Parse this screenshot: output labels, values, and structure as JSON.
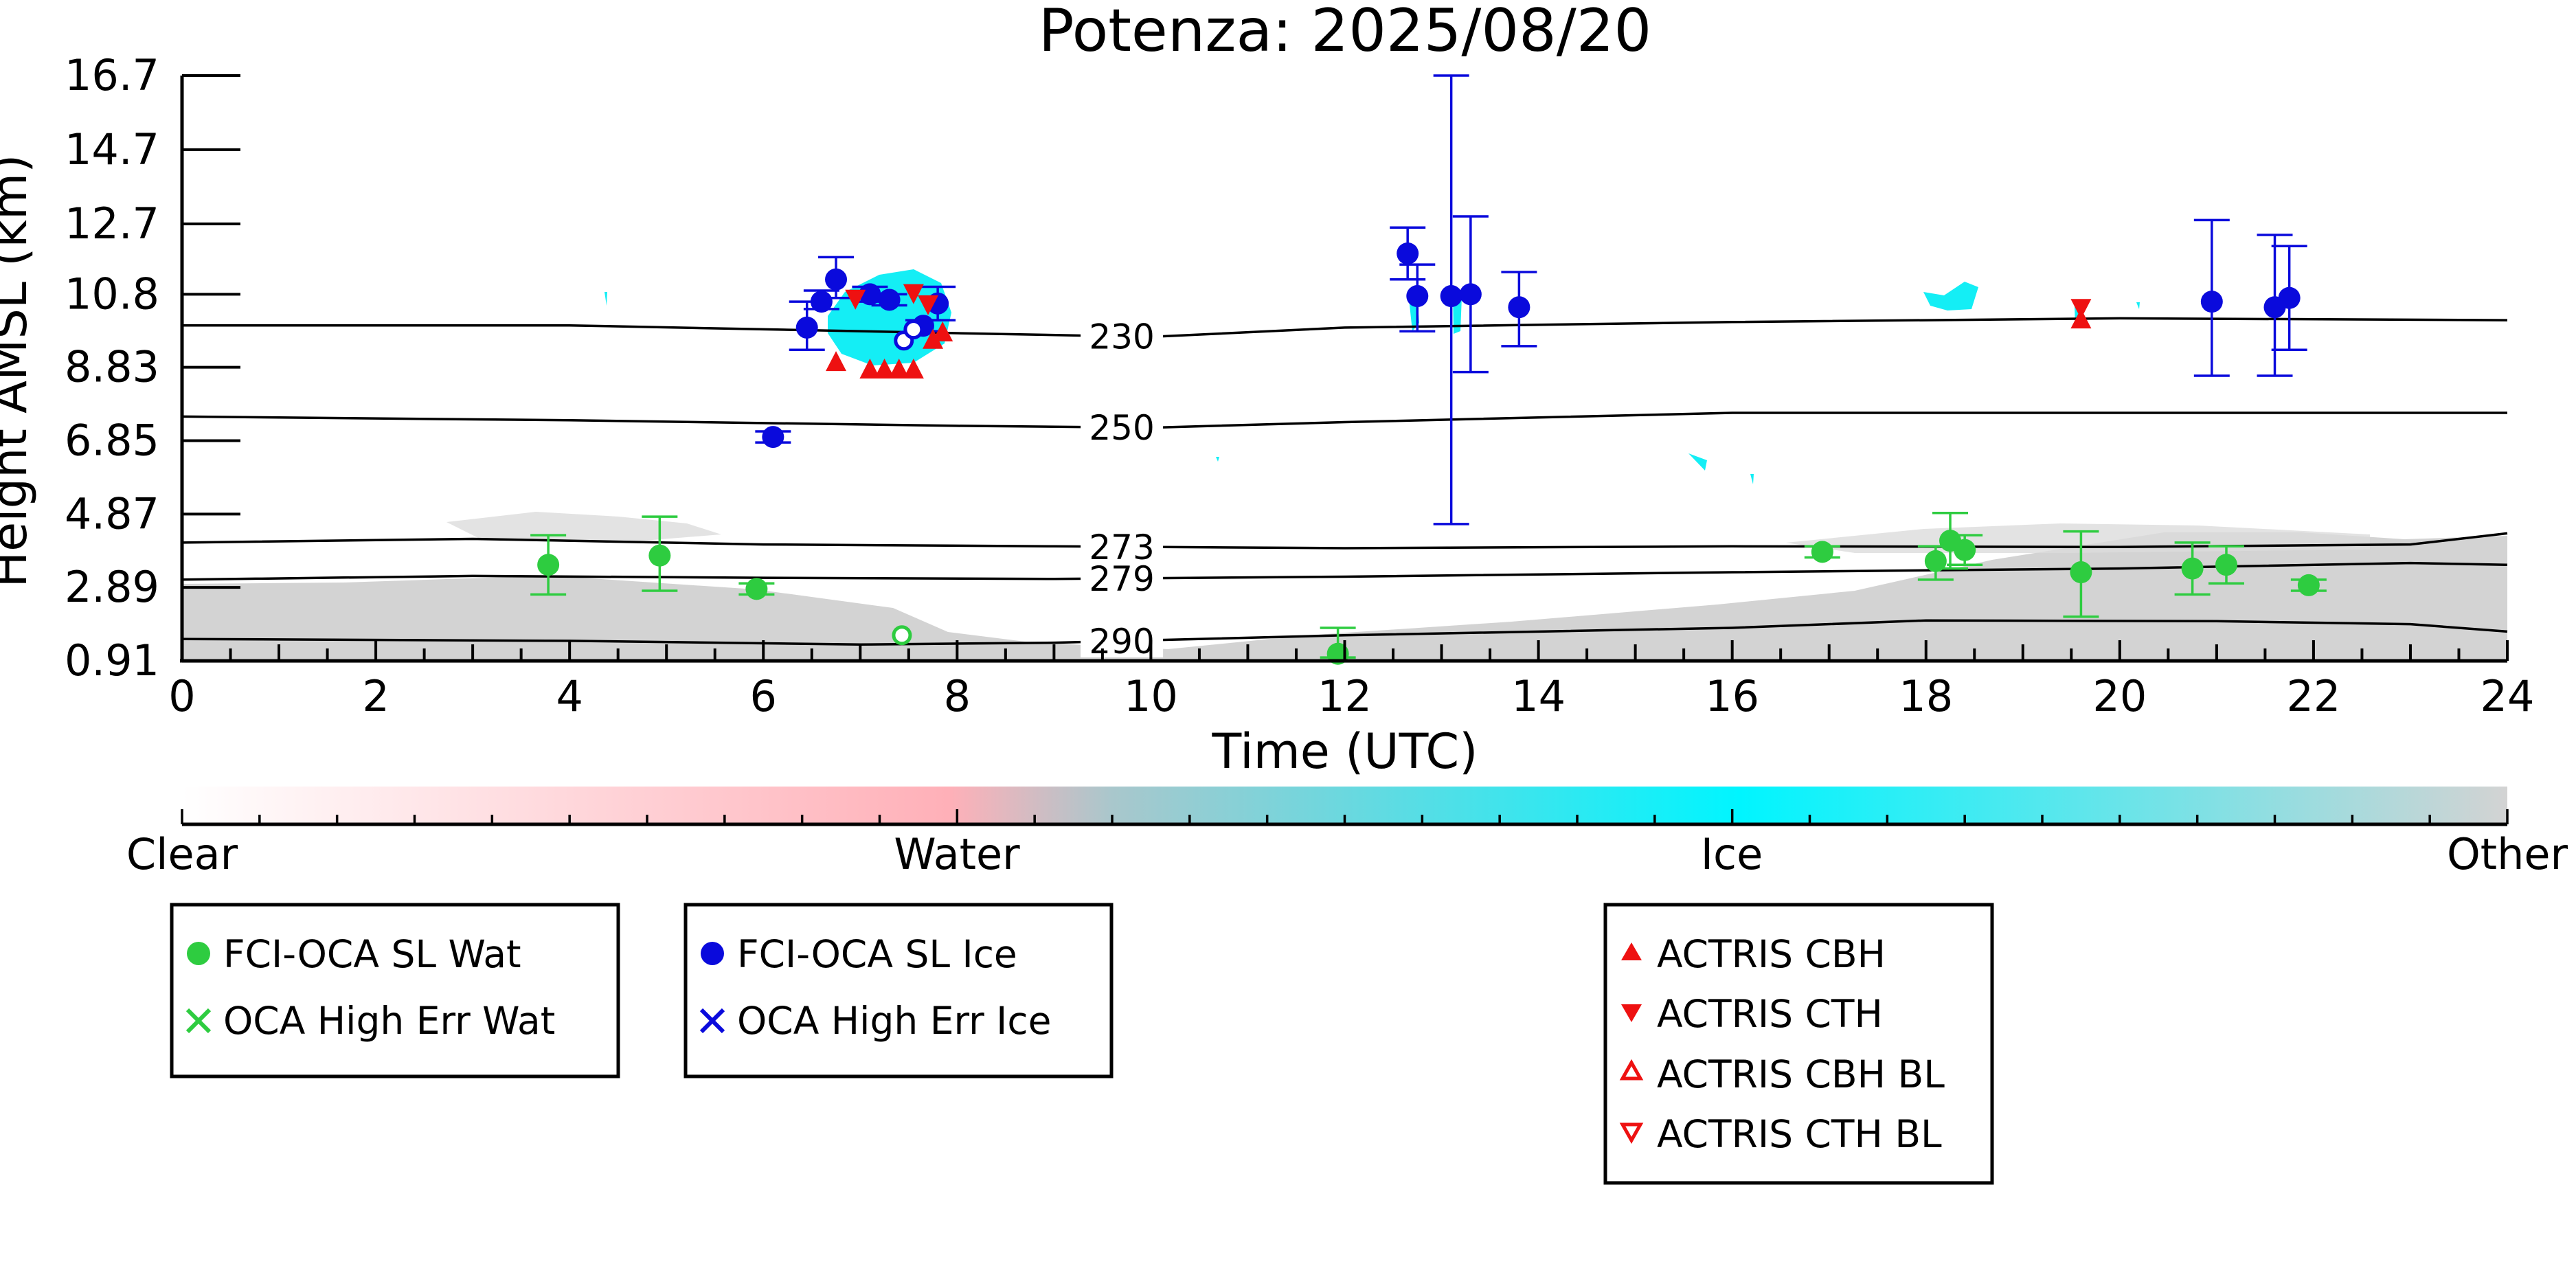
{
  "chart_data": {
    "type": "scatter",
    "title": "Potenza: 2025/08/20",
    "xlabel": "Time (UTC)",
    "ylabel": "Height AMSL (km)",
    "xlim": [
      0,
      24
    ],
    "ylim": [
      0.91,
      16.7
    ],
    "x_ticks": [
      "0",
      "2",
      "4",
      "6",
      "8",
      "10",
      "12",
      "14",
      "16",
      "18",
      "20",
      "22",
      "24"
    ],
    "y_ticks": [
      "0.91",
      "2.89",
      "4.87",
      "6.85",
      "8.83",
      "10.8",
      "12.7",
      "14.7",
      "16.7"
    ],
    "y_tick_values": [
      0.91,
      2.89,
      4.87,
      6.85,
      8.83,
      10.8,
      12.7,
      14.7,
      16.7
    ],
    "isotherms": [
      {
        "label": "230",
        "label_x": 9.7,
        "points": [
          [
            0,
            9.96
          ],
          [
            4,
            9.96
          ],
          [
            8,
            9.75
          ],
          [
            10,
            9.65
          ],
          [
            12,
            9.9
          ],
          [
            16,
            10.05
          ],
          [
            20,
            10.15
          ],
          [
            24,
            10.1
          ]
        ]
      },
      {
        "label": "250",
        "label_x": 9.7,
        "points": [
          [
            0,
            7.5
          ],
          [
            4,
            7.4
          ],
          [
            8,
            7.25
          ],
          [
            10,
            7.2
          ],
          [
            12,
            7.35
          ],
          [
            16,
            7.6
          ],
          [
            20,
            7.6
          ],
          [
            24,
            7.6
          ]
        ]
      },
      {
        "label": "273",
        "label_x": 9.7,
        "points": [
          [
            0,
            4.1
          ],
          [
            3,
            4.2
          ],
          [
            6,
            4.05
          ],
          [
            9,
            4.0
          ],
          [
            12,
            3.95
          ],
          [
            16,
            4.0
          ],
          [
            20,
            3.98
          ],
          [
            23,
            4.05
          ],
          [
            24,
            4.35
          ]
        ]
      },
      {
        "label": "279",
        "label_x": 9.7,
        "points": [
          [
            0,
            3.1
          ],
          [
            3,
            3.2
          ],
          [
            6,
            3.15
          ],
          [
            9,
            3.12
          ],
          [
            12,
            3.18
          ],
          [
            16,
            3.3
          ],
          [
            20,
            3.4
          ],
          [
            23,
            3.55
          ],
          [
            24,
            3.5
          ]
        ]
      },
      {
        "label": "290",
        "label_x": 9.7,
        "points": [
          [
            0,
            1.5
          ],
          [
            4,
            1.45
          ],
          [
            7,
            1.35
          ],
          [
            9,
            1.4
          ],
          [
            12,
            1.6
          ],
          [
            16,
            1.8
          ],
          [
            18,
            2.0
          ],
          [
            21,
            1.98
          ],
          [
            23,
            1.9
          ],
          [
            24,
            1.7
          ]
        ]
      }
    ],
    "series": [
      {
        "name": "FCI-OCA SL Wat",
        "color": "#2ecc40",
        "marker": "circle",
        "points": [
          {
            "x": 3.78,
            "y": 3.5,
            "ylo": 2.7,
            "yhi": 4.3
          },
          {
            "x": 4.93,
            "y": 3.75,
            "ylo": 2.8,
            "yhi": 4.8
          },
          {
            "x": 5.93,
            "y": 2.85,
            "ylo": 2.7,
            "yhi": 3.0
          },
          {
            "x": 11.93,
            "y": 1.1,
            "ylo": 1.0,
            "yhi": 1.8
          },
          {
            "x": 16.93,
            "y": 3.85,
            "ylo": 3.7,
            "yhi": 4.0
          },
          {
            "x": 18.1,
            "y": 3.6,
            "ylo": 3.1,
            "yhi": 4.0
          },
          {
            "x": 18.25,
            "y": 4.15,
            "ylo": 3.4,
            "yhi": 4.9
          },
          {
            "x": 18.4,
            "y": 3.9,
            "ylo": 3.5,
            "yhi": 4.3
          },
          {
            "x": 19.6,
            "y": 3.3,
            "ylo": 2.1,
            "yhi": 4.4
          },
          {
            "x": 20.75,
            "y": 3.4,
            "ylo": 2.7,
            "yhi": 4.1
          },
          {
            "x": 21.1,
            "y": 3.5,
            "ylo": 3.0,
            "yhi": 4.0
          },
          {
            "x": 21.95,
            "y": 2.95,
            "ylo": 2.8,
            "yhi": 3.1
          }
        ]
      },
      {
        "name": "OCA High Err Wat",
        "color": "#2ecc40",
        "marker": "x",
        "points": []
      },
      {
        "name": "FCI-OCA SL Ice",
        "color": "#0a0adc",
        "marker": "circle",
        "points": [
          {
            "x": 6.1,
            "y": 6.95,
            "ylo": 6.8,
            "yhi": 7.1
          },
          {
            "x": 6.45,
            "y": 9.9,
            "ylo": 9.3,
            "yhi": 10.6
          },
          {
            "x": 6.6,
            "y": 10.6,
            "ylo": 10.4,
            "yhi": 10.9
          },
          {
            "x": 6.75,
            "y": 11.2,
            "ylo": 10.7,
            "yhi": 11.8
          },
          {
            "x": 7.1,
            "y": 10.8,
            "ylo": 10.6,
            "yhi": 11.0
          },
          {
            "x": 7.3,
            "y": 10.65,
            "ylo": 10.5,
            "yhi": 10.8
          },
          {
            "x": 7.65,
            "y": 9.95,
            "ylo": 9.8,
            "yhi": 10.1
          },
          {
            "x": 7.8,
            "y": 10.55,
            "ylo": 10.1,
            "yhi": 11.0
          },
          {
            "x": 12.65,
            "y": 11.9,
            "ylo": 11.2,
            "yhi": 12.6
          },
          {
            "x": 12.75,
            "y": 10.75,
            "ylo": 9.8,
            "yhi": 11.6
          },
          {
            "x": 13.1,
            "y": 10.75,
            "ylo": 4.6,
            "yhi": 16.7
          },
          {
            "x": 13.3,
            "y": 10.8,
            "ylo": 8.7,
            "yhi": 12.9
          },
          {
            "x": 13.8,
            "y": 10.45,
            "ylo": 9.4,
            "yhi": 11.4
          },
          {
            "x": 20.95,
            "y": 10.6,
            "ylo": 8.6,
            "yhi": 12.8
          },
          {
            "x": 21.6,
            "y": 10.45,
            "ylo": 8.6,
            "yhi": 12.4
          },
          {
            "x": 21.75,
            "y": 10.7,
            "ylo": 9.3,
            "yhi": 12.1
          }
        ]
      },
      {
        "name": "OCA High Err Ice",
        "color": "#0a0adc",
        "marker": "x",
        "points": []
      },
      {
        "name": "ACTRIS CBH",
        "color": "#ee1111",
        "marker": "triangle-up",
        "points": [
          {
            "x": 6.75,
            "y": 8.95
          },
          {
            "x": 7.1,
            "y": 8.75
          },
          {
            "x": 7.25,
            "y": 8.75
          },
          {
            "x": 7.4,
            "y": 8.75
          },
          {
            "x": 7.55,
            "y": 8.75
          },
          {
            "x": 7.75,
            "y": 9.55
          },
          {
            "x": 7.85,
            "y": 9.75
          },
          {
            "x": 19.6,
            "y": 10.1
          }
        ]
      },
      {
        "name": "ACTRIS CTH",
        "color": "#ee1111",
        "marker": "triangle-down",
        "points": [
          {
            "x": 6.95,
            "y": 10.7
          },
          {
            "x": 7.55,
            "y": 10.85
          },
          {
            "x": 7.7,
            "y": 10.55
          },
          {
            "x": 19.6,
            "y": 10.45
          }
        ]
      },
      {
        "name": "ACTRIS CBH BL",
        "color": "#ee1111",
        "marker": "triangle-up-open",
        "points": []
      },
      {
        "name": "ACTRIS CTH BL",
        "color": "#ee1111",
        "marker": "triangle-down-open",
        "points": []
      }
    ],
    "open_markers": [
      {
        "x": 7.45,
        "y": 9.55,
        "color": "#0a0adc"
      },
      {
        "x": 7.55,
        "y": 9.85,
        "color": "#0a0adc"
      },
      {
        "x": 7.43,
        "y": 1.6,
        "color": "#2ecc40"
      }
    ],
    "background_classification": {
      "colorbar_labels": [
        "Clear",
        "Water",
        "Ice",
        "Other"
      ],
      "colorbar_colors": [
        "#ffffff",
        "#ffb0b8",
        "#00f5ff",
        "#d3d3d3"
      ]
    },
    "legends": [
      [
        "FCI-OCA SL Wat",
        "OCA High Err Wat"
      ],
      [
        "FCI-OCA SL Ice",
        "OCA High Err Ice"
      ],
      [
        "ACTRIS CBH",
        "ACTRIS CTH",
        "ACTRIS CBH BL",
        "ACTRIS CTH BL"
      ]
    ],
    "grid": false
  }
}
